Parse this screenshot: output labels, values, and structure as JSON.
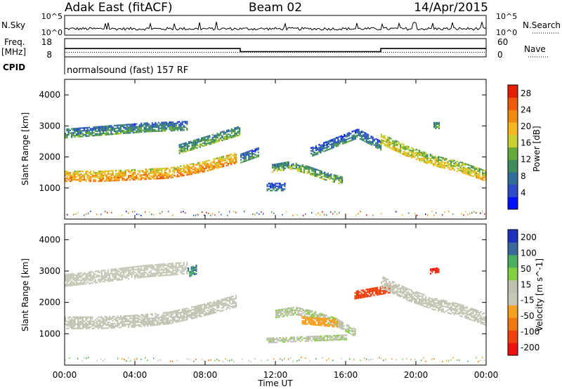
{
  "header": {
    "site": "Adak East (fitACF)",
    "beam": "Beam 02",
    "date": "14/Apr/2015"
  },
  "top_panels": {
    "nsky_label": "N.Sky",
    "nsky_ticks": [
      "10^5",
      "10^0"
    ],
    "nsearch_label": "N.Search",
    "nsearch_ticks": [
      "10^5",
      "10^0"
    ],
    "freq_label": "Freq.",
    "freq_unit": "[MHz]",
    "freq_ticks": [
      18,
      8
    ],
    "nave_label": "Nave",
    "nave_ticks": [
      60,
      0
    ],
    "cpid_label": "CPID",
    "cpid_text": "normalsound (fast) 157 RF",
    "freq_series": {
      "hours": [
        0,
        10,
        10,
        18,
        18,
        24
      ],
      "mhz": [
        12.5,
        12.5,
        10.5,
        10.5,
        12.5,
        12.5
      ]
    },
    "nave_dotted_value": 12
  },
  "colors": {
    "power_scale": [
      "#0010ff",
      "#2f4cc8",
      "#2e6f9a",
      "#3e8b5c",
      "#66aa3a",
      "#c8d030",
      "#f5b820",
      "#f08a10",
      "#ee5a08",
      "#e42000"
    ],
    "velocity_scale": [
      "#f01010",
      "#f04010",
      "#f07810",
      "#f4a020",
      "#c8c8b8",
      "#c0c0b0",
      "#80d040",
      "#48b060",
      "#3a6a9a",
      "#2030c0"
    ]
  },
  "chart_data": [
    {
      "type": "heatmap",
      "title": "",
      "xlabel": "Time UT",
      "ylabel": "Slant Range [km]",
      "xlim": [
        0,
        24
      ],
      "ylim": [
        0,
        4500
      ],
      "x_ticks": [
        "00:00",
        "04:00",
        "08:00",
        "12:00",
        "16:00",
        "20:00",
        "00:00"
      ],
      "y_ticks": [
        1000,
        2000,
        3000,
        4000
      ],
      "colorbar_label": "Power [dB]",
      "colorbar_ticks": [
        4,
        8,
        12,
        16,
        20,
        24,
        28
      ],
      "colorbar_range": [
        0,
        30
      ],
      "regions": [
        {
          "t0": 0.0,
          "t1": 9.8,
          "r_start": [
            1200,
            1200,
            1250,
            1300,
            1500,
            1800
          ],
          "width": 350,
          "value": 20
        },
        {
          "t0": 0.0,
          "t1": 7.0,
          "r_start": [
            2600,
            2700,
            2800,
            2850
          ],
          "width": 300,
          "value": 9
        },
        {
          "t0": 6.5,
          "t1": 10.0,
          "r_start": [
            2100,
            2300,
            2500,
            2700
          ],
          "width": 300,
          "value": 11
        },
        {
          "t0": 10.0,
          "t1": 11.0,
          "r_start": [
            1800,
            2000
          ],
          "width": 300,
          "value": 8
        },
        {
          "t0": 11.8,
          "t1": 15.8,
          "r_start": [
            1500,
            1600,
            1450,
            1250,
            1100
          ],
          "width": 250,
          "value": 12
        },
        {
          "t0": 11.5,
          "t1": 12.5,
          "r_start": [
            900,
            900
          ],
          "width": 250,
          "value": 6
        },
        {
          "t0": 14.0,
          "t1": 18.0,
          "r_start": [
            2000,
            2300,
            2600,
            2200
          ],
          "width": 300,
          "value": 7
        },
        {
          "t0": 18.0,
          "t1": 24.0,
          "r_start": [
            2400,
            2000,
            1700,
            1500,
            1200
          ],
          "width": 350,
          "value": 16
        },
        {
          "t0": 21.0,
          "t1": 21.3,
          "r_start": [
            2900,
            2900
          ],
          "width": 200,
          "value": 10
        }
      ]
    },
    {
      "type": "heatmap",
      "title": "",
      "xlabel": "Time UT",
      "ylabel": "Slant Range [km]",
      "xlim": [
        0,
        24
      ],
      "ylim": [
        0,
        4500
      ],
      "x_ticks": [
        "00:00",
        "04:00",
        "08:00",
        "12:00",
        "16:00",
        "20:00",
        "00:00"
      ],
      "y_ticks": [
        1000,
        2000,
        3000,
        4000
      ],
      "colorbar_label": "Velocity [m s^-1]",
      "colorbar_ticks": [
        200,
        100,
        50,
        15,
        -15,
        -50,
        -100,
        -200
      ],
      "colorbar_range": [
        -250,
        250
      ],
      "regions": [
        {
          "t0": 0.0,
          "t1": 9.8,
          "r_start": [
            1150,
            1150,
            1200,
            1300,
            1550,
            1850
          ],
          "width": 400,
          "value": 0
        },
        {
          "t0": 0.0,
          "t1": 7.0,
          "r_start": [
            2500,
            2650,
            2800,
            2900
          ],
          "width": 400,
          "value": -30
        },
        {
          "t0": 7.0,
          "t1": 7.5,
          "r_start": [
            2800,
            2900
          ],
          "width": 300,
          "value": 150
        },
        {
          "t0": 12.0,
          "t1": 16.5,
          "r_start": [
            1500,
            1600,
            1450,
            1250,
            900
          ],
          "width": 250,
          "value": 40
        },
        {
          "t0": 13.5,
          "t1": 15.5,
          "r_start": [
            1300,
            1250,
            1200
          ],
          "width": 250,
          "value": -70
        },
        {
          "t0": 11.5,
          "t1": 16.0,
          "r_start": [
            700,
            750,
            800
          ],
          "width": 150,
          "value": 40
        },
        {
          "t0": 16.5,
          "t1": 18.5,
          "r_start": [
            2100,
            2200,
            2300
          ],
          "width": 250,
          "value": -180
        },
        {
          "t0": 18.0,
          "t1": 24.0,
          "r_start": [
            2450,
            2050,
            1750,
            1550,
            1250
          ],
          "width": 400,
          "value": 0
        },
        {
          "t0": 20.8,
          "t1": 21.3,
          "r_start": [
            2900,
            2950
          ],
          "width": 150,
          "value": -200
        }
      ]
    }
  ]
}
